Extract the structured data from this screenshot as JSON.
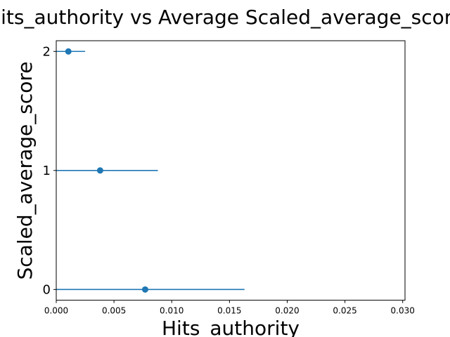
{
  "chart_data": {
    "type": "scatter",
    "title": "Hits_authority vs Average Scaled_average_score",
    "xlabel": "Hits_authority",
    "ylabel": "Scaled_average_score",
    "xlim": [
      0.0,
      0.0302
    ],
    "ylim": [
      -0.09,
      2.09
    ],
    "x_ticks": [
      0.0,
      0.005,
      0.01,
      0.015,
      0.02,
      0.025,
      0.03
    ],
    "x_tick_labels": [
      "0.000",
      "0.005",
      "0.010",
      "0.015",
      "0.020",
      "0.025",
      "0.030"
    ],
    "y_ticks": [
      0,
      1,
      2
    ],
    "y_tick_labels": [
      "0",
      "1",
      "2"
    ],
    "grid": false,
    "legend": "none",
    "color": "#1f77b4",
    "points": [
      {
        "y": 2,
        "x": 0.00105,
        "xerr": 0.00145
      },
      {
        "y": 1,
        "x": 0.0038,
        "xerr": 0.005
      },
      {
        "y": 0,
        "x": 0.0077,
        "xerr": 0.0086
      }
    ]
  }
}
